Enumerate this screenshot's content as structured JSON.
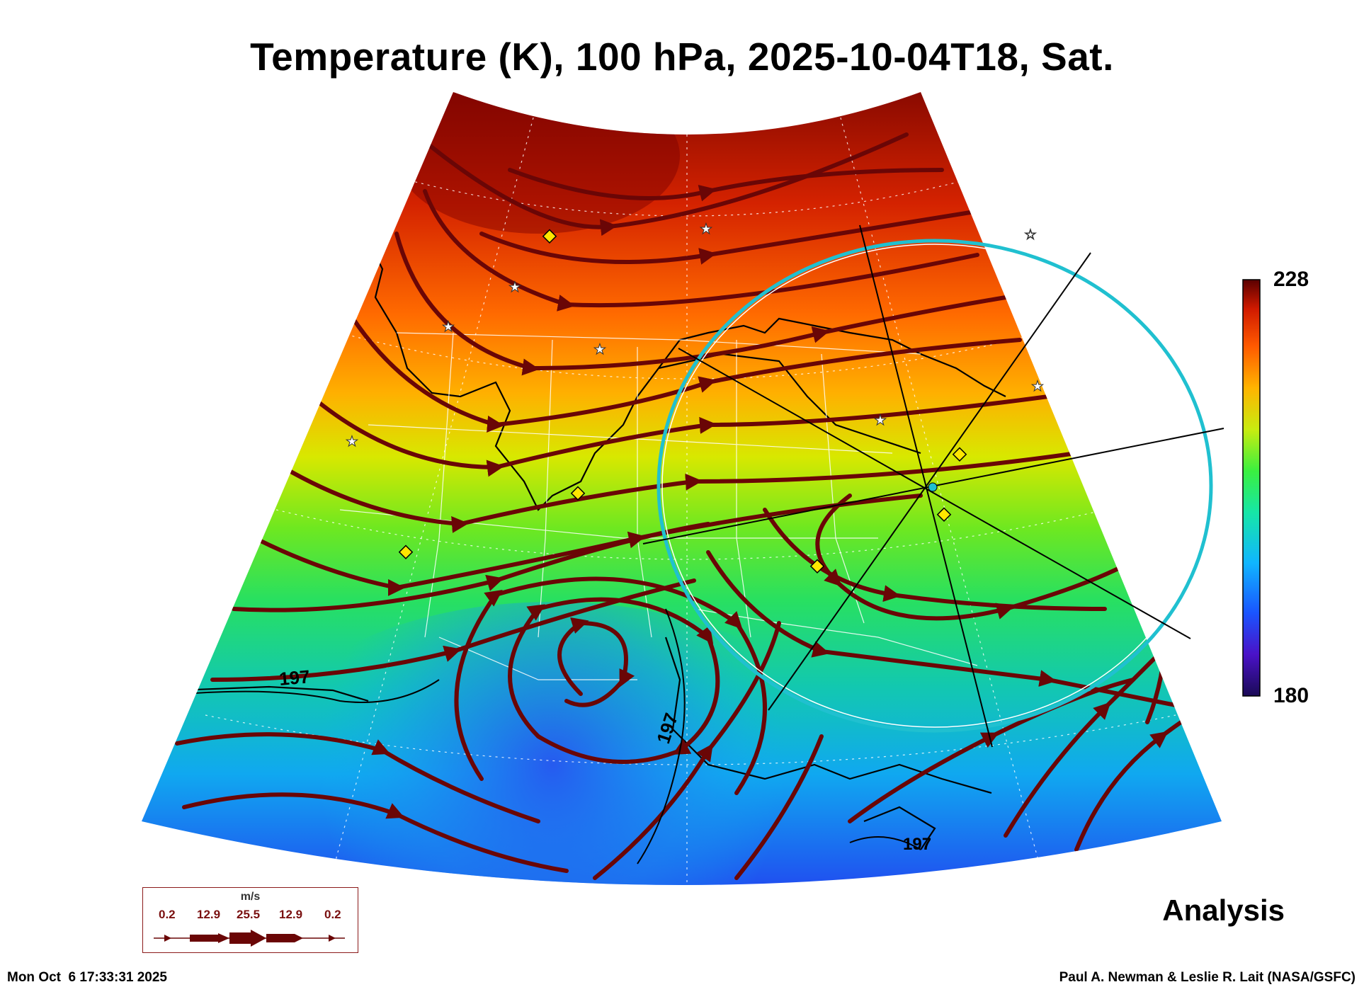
{
  "title": "Temperature (K), 100 hPa, 2025-10-04T18, Sat.",
  "colorbar": {
    "max_label": "228",
    "min_label": "180",
    "max": 228,
    "min": 180,
    "colors": [
      "#1a0a55",
      "#4a12c8",
      "#1a55ff",
      "#10b6ff",
      "#16e6a8",
      "#3af040",
      "#c8ec10",
      "#ffb400",
      "#ff5a00",
      "#d01a00",
      "#5a0000"
    ]
  },
  "contour_label": "197",
  "legend": {
    "unit": "m/s",
    "values": [
      "0.2",
      "12.9",
      "25.5",
      "12.9",
      "0.2"
    ]
  },
  "analysis_label": "Analysis",
  "timestamp": "Mon Oct  6 17:33:31 2025",
  "credit": "Paul A. Newman & Leslie R. Lait (NASA/GSFC)"
}
